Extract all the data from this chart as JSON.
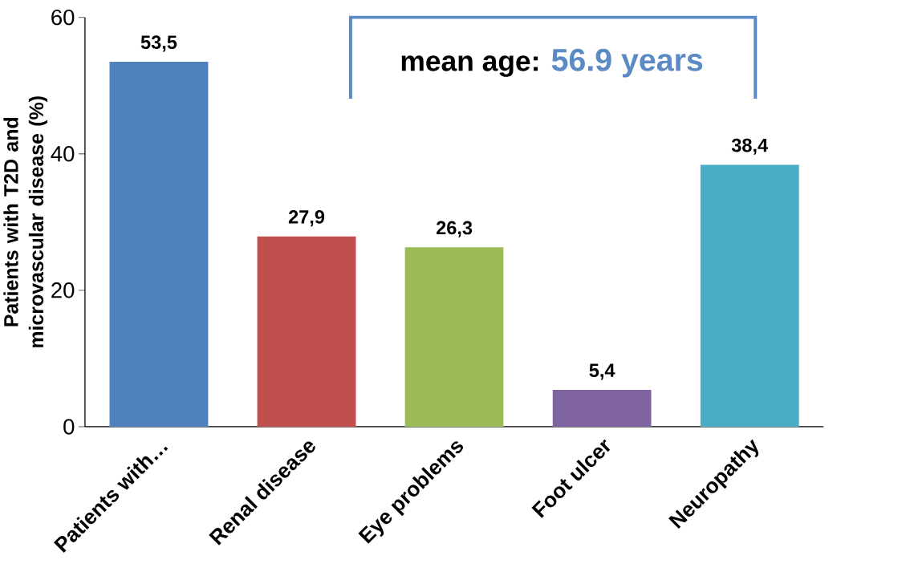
{
  "chart_data": {
    "type": "bar",
    "categories": [
      "Patients with…",
      "Renal disease",
      "Eye problems",
      "Foot ulcer",
      "Neuropathy"
    ],
    "values": [
      53.5,
      27.9,
      26.3,
      5.4,
      38.4
    ],
    "value_labels": [
      "53,5",
      "27,9",
      "26,3",
      "5,4",
      "38,4"
    ],
    "colors": [
      "#4f81bd",
      "#c0504d",
      "#9bbb59",
      "#8064a2",
      "#4bacc6"
    ],
    "ylabel": "Patients with T2D and microvascular disease (%)",
    "ylim": [
      0,
      60
    ],
    "yticks": [
      0,
      20,
      40,
      60
    ],
    "annotations": [
      "mean age:",
      "56.9 years"
    ],
    "grid": false
  }
}
